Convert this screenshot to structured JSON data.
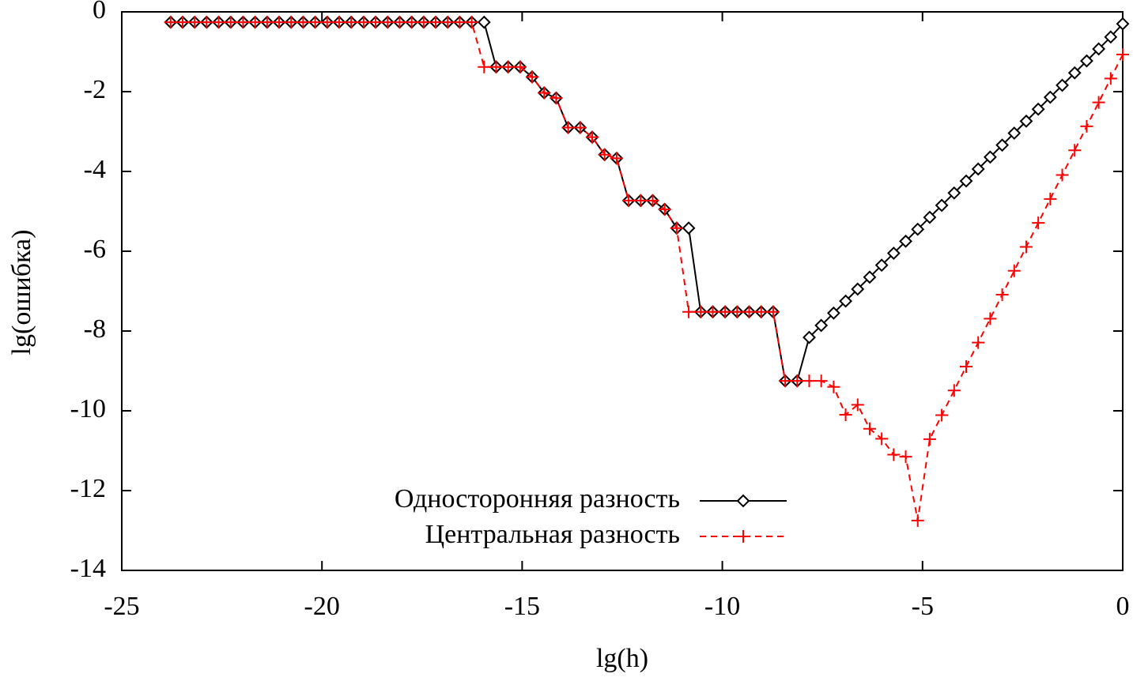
{
  "chart_data": {
    "type": "line",
    "xlabel": "lg(h)",
    "ylabel": "lg(ошибка)",
    "xlim": [
      -25,
      0
    ],
    "xticks": [
      -25,
      -20,
      -15,
      -10,
      -5,
      0
    ],
    "ylim": [
      -14,
      0
    ],
    "yticks": [
      -14,
      -12,
      -10,
      -8,
      -6,
      -4,
      -2,
      0
    ],
    "legend": "bottom",
    "x": [
      0,
      -0.3,
      -0.6,
      -0.9,
      -1.2,
      -1.51,
      -1.81,
      -2.11,
      -2.41,
      -2.71,
      -3.01,
      -3.31,
      -3.61,
      -3.91,
      -4.21,
      -4.52,
      -4.82,
      -5.12,
      -5.42,
      -5.72,
      -6.02,
      -6.32,
      -6.62,
      -6.92,
      -7.22,
      -7.53,
      -7.83,
      -8.13,
      -8.43,
      -8.73,
      -9.03,
      -9.33,
      -9.63,
      -9.93,
      -10.24,
      -10.54,
      -10.84,
      -11.14,
      -11.44,
      -11.74,
      -12.04,
      -12.34,
      -12.64,
      -12.94,
      -13.25,
      -13.55,
      -13.85,
      -14.15,
      -14.45,
      -14.75,
      -15.05,
      -15.35,
      -15.65,
      -15.95,
      -16.26,
      -16.56,
      -16.86,
      -17.16,
      -17.46,
      -17.76,
      -18.06,
      -18.36,
      -18.66,
      -18.96,
      -19.27,
      -19.57,
      -19.87,
      -20.17,
      -20.47,
      -20.77,
      -21.07,
      -21.37,
      -21.67,
      -21.97,
      -22.28,
      -22.58,
      -22.88,
      -23.18,
      -23.48,
      -23.78
    ],
    "series": [
      {
        "name": "Односторонняя разность",
        "color": "#000000",
        "marker": "diamond",
        "line_style": "solid",
        "values": [
          -0.3,
          -0.63,
          -0.93,
          -1.23,
          -1.53,
          -1.84,
          -2.14,
          -2.44,
          -2.74,
          -3.04,
          -3.34,
          -3.64,
          -3.94,
          -4.24,
          -4.54,
          -4.85,
          -5.15,
          -5.45,
          -5.75,
          -6.05,
          -6.35,
          -6.65,
          -6.95,
          -7.25,
          -7.55,
          -7.86,
          -8.16,
          -9.25,
          -9.25,
          -7.52,
          -7.52,
          -7.52,
          -7.52,
          -7.52,
          -7.52,
          -7.52,
          -5.42,
          -5.42,
          -4.95,
          -4.73,
          -4.73,
          -4.73,
          -3.67,
          -3.58,
          -3.14,
          -2.9,
          -2.9,
          -2.16,
          -2.03,
          -1.63,
          -1.38,
          -1.38,
          -1.38,
          -0.26,
          -0.26,
          -0.26,
          -0.26,
          -0.26,
          -0.26,
          -0.26,
          -0.26,
          -0.26,
          -0.26,
          -0.26,
          -0.26,
          -0.26,
          -0.26,
          -0.26,
          -0.26,
          -0.26,
          -0.26,
          -0.26,
          -0.26,
          -0.26,
          -0.26,
          -0.26,
          -0.26,
          -0.26,
          -0.26,
          -0.26
        ]
      },
      {
        "name": "Центральная разность",
        "color": "#ff0000",
        "marker": "plus",
        "line_style": "dashed",
        "values": [
          -1.07,
          -1.67,
          -2.27,
          -2.87,
          -3.47,
          -4.09,
          -4.69,
          -5.29,
          -5.89,
          -6.49,
          -7.09,
          -7.69,
          -8.29,
          -8.89,
          -9.49,
          -10.11,
          -10.71,
          -12.75,
          -11.15,
          -11.1,
          -10.7,
          -10.45,
          -9.85,
          -10.1,
          -9.4,
          -9.25,
          -9.25,
          -9.25,
          -9.25,
          -7.52,
          -7.52,
          -7.52,
          -7.52,
          -7.52,
          -7.52,
          -7.52,
          -7.52,
          -5.42,
          -4.95,
          -4.73,
          -4.73,
          -4.73,
          -3.67,
          -3.58,
          -3.14,
          -2.9,
          -2.9,
          -2.16,
          -2.03,
          -1.63,
          -1.38,
          -1.38,
          -1.38,
          -1.38,
          -0.26,
          -0.26,
          -0.26,
          -0.26,
          -0.26,
          -0.26,
          -0.26,
          -0.26,
          -0.26,
          -0.26,
          -0.26,
          -0.26,
          -0.26,
          -0.26,
          -0.26,
          -0.26,
          -0.26,
          -0.26,
          -0.26,
          -0.26,
          -0.26,
          -0.26,
          -0.26,
          -0.26,
          -0.26,
          -0.26
        ]
      }
    ]
  }
}
